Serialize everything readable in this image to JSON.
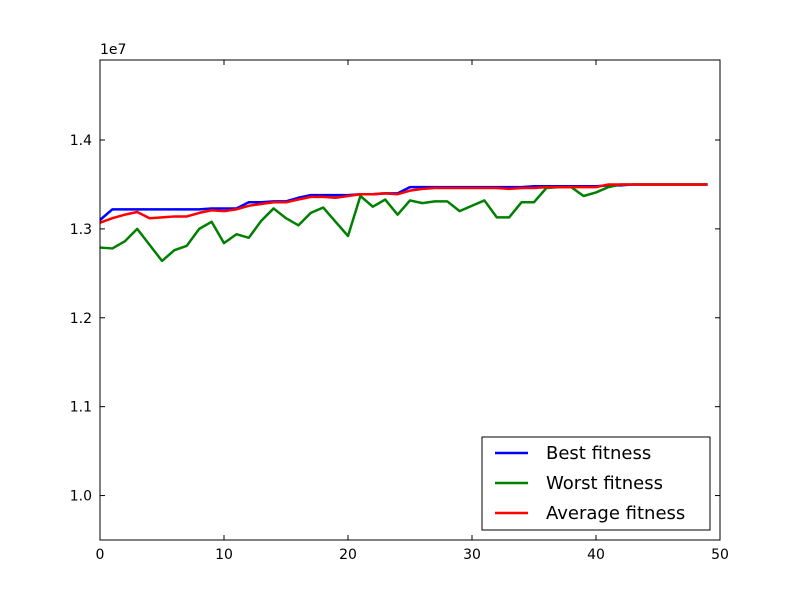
{
  "chart_data": {
    "type": "line",
    "title": "",
    "xlabel": "",
    "ylabel": "",
    "offset_label": "1e7",
    "xlim": [
      0,
      50
    ],
    "ylim": [
      0.95,
      1.49
    ],
    "x_ticks": [
      0,
      10,
      20,
      30,
      40,
      50
    ],
    "x_tick_labels": [
      "0",
      "10",
      "20",
      "30",
      "40",
      "50"
    ],
    "y_ticks": [
      1.0,
      1.1,
      1.2,
      1.3,
      1.4
    ],
    "y_tick_labels": [
      "1.0",
      "1.1",
      "1.2",
      "1.3",
      "1.4"
    ],
    "grid": false,
    "legend_position": "lower-right",
    "x": [
      0,
      1,
      2,
      3,
      4,
      5,
      6,
      7,
      8,
      9,
      10,
      11,
      12,
      13,
      14,
      15,
      16,
      17,
      18,
      19,
      20,
      21,
      22,
      23,
      24,
      25,
      26,
      27,
      28,
      29,
      30,
      31,
      32,
      33,
      34,
      35,
      36,
      37,
      38,
      39,
      40,
      41,
      42,
      43,
      44,
      45,
      46,
      47,
      48,
      49
    ],
    "series": [
      {
        "name": "Best fitness",
        "color": "#0000ff",
        "values": [
          1.31,
          1.322,
          1.322,
          1.322,
          1.322,
          1.322,
          1.322,
          1.322,
          1.322,
          1.323,
          1.323,
          1.323,
          1.33,
          1.33,
          1.331,
          1.331,
          1.335,
          1.338,
          1.338,
          1.338,
          1.338,
          1.339,
          1.339,
          1.34,
          1.34,
          1.347,
          1.347,
          1.347,
          1.347,
          1.347,
          1.347,
          1.347,
          1.347,
          1.347,
          1.347,
          1.348,
          1.348,
          1.348,
          1.348,
          1.348,
          1.348,
          1.349,
          1.349,
          1.35,
          1.35,
          1.35,
          1.35,
          1.35,
          1.35,
          1.35
        ]
      },
      {
        "name": "Worst fitness",
        "color": "#008000",
        "values": [
          1.279,
          1.278,
          1.286,
          1.3,
          1.282,
          1.264,
          1.276,
          1.281,
          1.3,
          1.308,
          1.284,
          1.294,
          1.29,
          1.309,
          1.323,
          1.312,
          1.304,
          1.318,
          1.324,
          1.308,
          1.292,
          1.337,
          1.325,
          1.333,
          1.316,
          1.332,
          1.329,
          1.331,
          1.331,
          1.32,
          1.326,
          1.332,
          1.313,
          1.313,
          1.33,
          1.33,
          1.346,
          1.347,
          1.347,
          1.337,
          1.341,
          1.347,
          1.35,
          1.35,
          1.35,
          1.35,
          1.35,
          1.35,
          1.35,
          1.35
        ]
      },
      {
        "name": "Average fitness",
        "color": "#ff0000",
        "values": [
          1.307,
          1.312,
          1.316,
          1.319,
          1.312,
          1.313,
          1.314,
          1.314,
          1.318,
          1.321,
          1.32,
          1.322,
          1.326,
          1.328,
          1.33,
          1.33,
          1.333,
          1.336,
          1.336,
          1.335,
          1.337,
          1.339,
          1.339,
          1.34,
          1.339,
          1.343,
          1.345,
          1.346,
          1.346,
          1.346,
          1.346,
          1.346,
          1.346,
          1.345,
          1.346,
          1.346,
          1.347,
          1.347,
          1.347,
          1.347,
          1.347,
          1.35,
          1.35,
          1.35,
          1.35,
          1.35,
          1.35,
          1.35,
          1.35,
          1.35
        ]
      }
    ]
  }
}
